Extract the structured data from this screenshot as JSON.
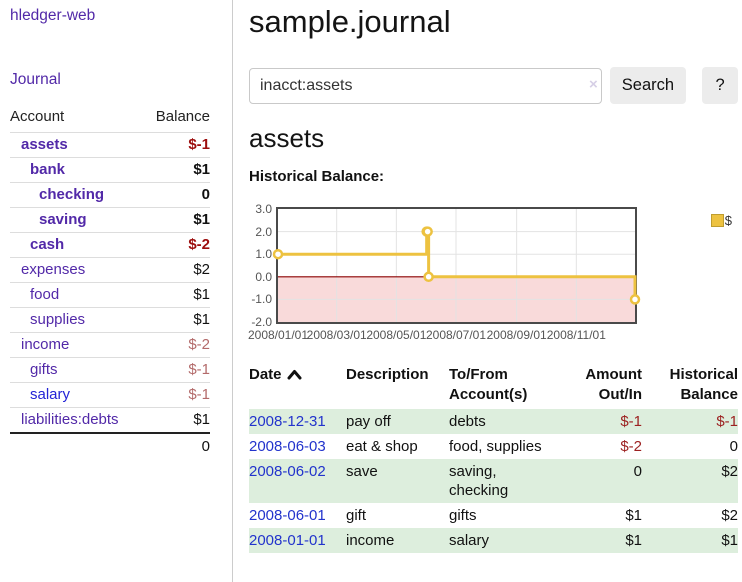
{
  "app": {
    "title": "hledger-web"
  },
  "sidebar": {
    "journal_link": "Journal",
    "accounts": {
      "header_account": "Account",
      "header_balance": "Balance",
      "rows": [
        {
          "name": "assets",
          "balance": "$-1"
        },
        {
          "name": "bank",
          "balance": "$1"
        },
        {
          "name": "checking",
          "balance": "0"
        },
        {
          "name": "saving",
          "balance": "$1"
        },
        {
          "name": "cash",
          "balance": "$-2"
        },
        {
          "name": "expenses",
          "balance": "$2"
        },
        {
          "name": "food",
          "balance": "$1"
        },
        {
          "name": "supplies",
          "balance": "$1"
        },
        {
          "name": "income",
          "balance": "$-2"
        },
        {
          "name": "gifts",
          "balance": "$-1"
        },
        {
          "name": "salary",
          "balance": "$-1"
        },
        {
          "name": "liabilities:debts",
          "balance": "$1"
        }
      ],
      "total": "0"
    }
  },
  "header": {
    "title": "sample.journal"
  },
  "search": {
    "value": "inacct:assets",
    "clear_icon": "×",
    "button_label": "Search",
    "help_label": "?"
  },
  "account_page": {
    "title": "assets",
    "chart_label": "Historical Balance:"
  },
  "chart_data": {
    "type": "line",
    "step": true,
    "title": "Historical Balance",
    "series": [
      {
        "name": "$",
        "color": "#edc240",
        "points": [
          [
            "2008-01-01",
            1
          ],
          [
            "2008-06-01",
            2
          ],
          [
            "2008-06-02",
            2
          ],
          [
            "2008-06-03",
            0
          ],
          [
            "2008-12-31",
            -1
          ]
        ]
      }
    ],
    "ylim": [
      -2,
      3
    ],
    "yticks": [
      "3.0",
      "2.0",
      "1.0",
      "0.0",
      "-1.0",
      "-2.0"
    ],
    "xticks": [
      "2008/01/01",
      "2008/03/01",
      "2008/05/01",
      "2008/07/01",
      "2008/09/01",
      "2008/11/01"
    ],
    "xrange": [
      "2008-01-01",
      "2008-12-31"
    ],
    "legend_position": "top-right",
    "grid": true,
    "zero_line_color": "#8b0000",
    "negative_region_color": "#f9dada"
  },
  "register": {
    "headers": {
      "date": "Date",
      "description": "Description",
      "accounts": "To/From Account(s)",
      "amount": "Amount Out/In",
      "balance": "Historical Balance"
    },
    "rows": [
      {
        "date": "2008-12-31",
        "description": "pay off",
        "accounts": "debts",
        "amount": "$-1",
        "balance": "$-1"
      },
      {
        "date": "2008-06-03",
        "description": "eat & shop",
        "accounts": "food, supplies",
        "amount": "$-2",
        "balance": "0"
      },
      {
        "date": "2008-06-02",
        "description": "save",
        "accounts": "saving,\nchecking",
        "amount": "0",
        "balance": "$2"
      },
      {
        "date": "2008-06-01",
        "description": "gift",
        "accounts": "gifts",
        "amount": "$1",
        "balance": "$2"
      },
      {
        "date": "2008-01-01",
        "description": "income",
        "accounts": "salary",
        "amount": "$1",
        "balance": "$1"
      }
    ]
  }
}
